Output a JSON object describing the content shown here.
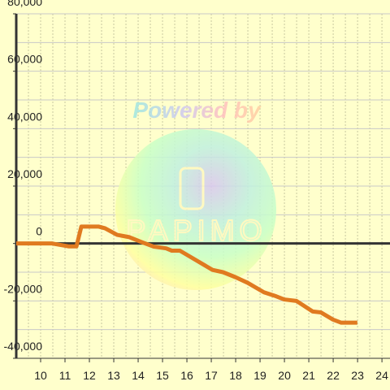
{
  "chart_data": {
    "type": "line",
    "watermark": {
      "text": "Powered by",
      "logo": "PAPIMO"
    },
    "x": [
      9,
      10.47,
      11.14,
      11.47,
      11.67,
      12.37,
      12.64,
      13.14,
      13.64,
      14.14,
      14.64,
      15.15,
      15.38,
      15.71,
      16.05,
      17.05,
      17.48,
      17.98,
      18.49,
      19.16,
      19.66,
      19.99,
      20.49,
      21.16,
      21.49,
      21.99,
      22.33,
      22.99
    ],
    "series": [
      {
        "color": "#e07a20",
        "values": [
          0,
          0,
          -1000,
          -1000,
          5900,
          5900,
          5300,
          3000,
          2200,
          500,
          -1100,
          -1700,
          -2500,
          -2500,
          -4200,
          -9200,
          -10000,
          -11700,
          -13700,
          -17000,
          -18400,
          -19500,
          -20000,
          -23700,
          -24000,
          -26500,
          -27600,
          -27600
        ]
      }
    ],
    "xlim": [
      9,
      24.33
    ],
    "xticks": [
      10,
      11,
      12,
      13,
      14,
      15,
      16,
      17,
      18,
      19,
      20,
      21,
      22,
      23,
      24
    ],
    "ylim": [
      -40000,
      80000
    ],
    "yticks": [
      {
        "value": -40000,
        "label": "-40,000"
      },
      {
        "value": -20000,
        "label": "-20,000"
      },
      0,
      {
        "value": 20000,
        "label": "20,000"
      },
      {
        "value": 40000,
        "label": "40,000"
      },
      {
        "value": 60000,
        "label": "60,000"
      },
      {
        "value": 80000,
        "label": "80,000"
      }
    ],
    "grid": true
  }
}
